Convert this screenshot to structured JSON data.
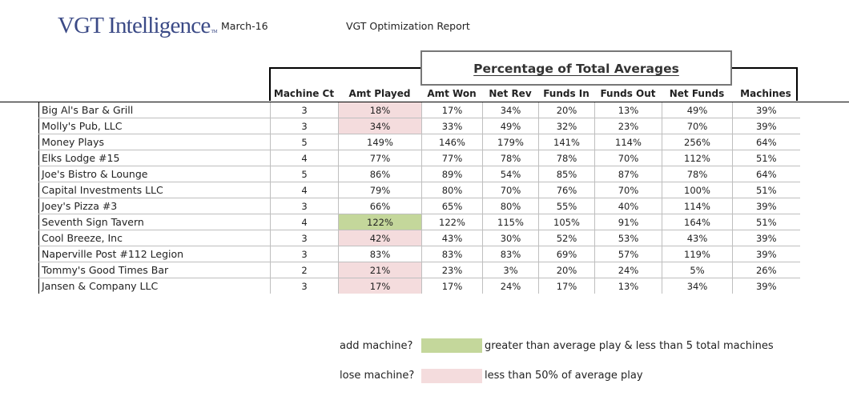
{
  "header": {
    "logo": "VGT Intelligence",
    "logo_tm": "TM",
    "date": "March-16",
    "report_title": "VGT Optimization Report",
    "section_title": "Percentage of Total Averages"
  },
  "columns": [
    "Machine Ct",
    "Amt Played",
    "Amt Won",
    "Net Rev",
    "Funds In",
    "Funds Out",
    "Net Funds",
    "Machines"
  ],
  "rows": [
    {
      "name": "Big Al's Bar & Grill",
      "machine_ct": "3",
      "amt_played": "18%",
      "amt_won": "17%",
      "net_rev": "34%",
      "funds_in": "20%",
      "funds_out": "13%",
      "net_funds": "49%",
      "machines": "39%",
      "flag": "lose"
    },
    {
      "name": "Molly's Pub, LLC",
      "machine_ct": "3",
      "amt_played": "34%",
      "amt_won": "33%",
      "net_rev": "49%",
      "funds_in": "32%",
      "funds_out": "23%",
      "net_funds": "70%",
      "machines": "39%",
      "flag": "lose"
    },
    {
      "name": "Money Plays",
      "machine_ct": "5",
      "amt_played": "149%",
      "amt_won": "146%",
      "net_rev": "179%",
      "funds_in": "141%",
      "funds_out": "114%",
      "net_funds": "256%",
      "machines": "64%",
      "flag": ""
    },
    {
      "name": "Elks Lodge #15",
      "machine_ct": "4",
      "amt_played": "77%",
      "amt_won": "77%",
      "net_rev": "78%",
      "funds_in": "78%",
      "funds_out": "70%",
      "net_funds": "112%",
      "machines": "51%",
      "flag": ""
    },
    {
      "name": "Joe's Bistro & Lounge",
      "machine_ct": "5",
      "amt_played": "86%",
      "amt_won": "89%",
      "net_rev": "54%",
      "funds_in": "85%",
      "funds_out": "87%",
      "net_funds": "78%",
      "machines": "64%",
      "flag": ""
    },
    {
      "name": "Capital Investments LLC",
      "machine_ct": "4",
      "amt_played": "79%",
      "amt_won": "80%",
      "net_rev": "70%",
      "funds_in": "76%",
      "funds_out": "70%",
      "net_funds": "100%",
      "machines": "51%",
      "flag": ""
    },
    {
      "name": "Joey's Pizza #3",
      "machine_ct": "3",
      "amt_played": "66%",
      "amt_won": "65%",
      "net_rev": "80%",
      "funds_in": "55%",
      "funds_out": "40%",
      "net_funds": "114%",
      "machines": "39%",
      "flag": ""
    },
    {
      "name": "Seventh Sign Tavern",
      "machine_ct": "4",
      "amt_played": "122%",
      "amt_won": "122%",
      "net_rev": "115%",
      "funds_in": "105%",
      "funds_out": "91%",
      "net_funds": "164%",
      "machines": "51%",
      "flag": "add"
    },
    {
      "name": "Cool Breeze, Inc",
      "machine_ct": "3",
      "amt_played": "42%",
      "amt_won": "43%",
      "net_rev": "30%",
      "funds_in": "52%",
      "funds_out": "53%",
      "net_funds": "43%",
      "machines": "39%",
      "flag": "lose"
    },
    {
      "name": "Naperville Post #112 Legion",
      "machine_ct": "3",
      "amt_played": "83%",
      "amt_won": "83%",
      "net_rev": "83%",
      "funds_in": "69%",
      "funds_out": "57%",
      "net_funds": "119%",
      "machines": "39%",
      "flag": ""
    },
    {
      "name": "Tommy's Good Times Bar",
      "machine_ct": "2",
      "amt_played": "21%",
      "amt_won": "23%",
      "net_rev": "3%",
      "funds_in": "20%",
      "funds_out": "24%",
      "net_funds": "5%",
      "machines": "26%",
      "flag": "lose"
    },
    {
      "name": "Jansen & Company LLC",
      "machine_ct": "3",
      "amt_played": "17%",
      "amt_won": "17%",
      "net_rev": "24%",
      "funds_in": "17%",
      "funds_out": "13%",
      "net_funds": "34%",
      "machines": "39%",
      "flag": "lose"
    }
  ],
  "legend": {
    "add_label": "add machine?",
    "add_text": "greater than average play & less than 5 total machines",
    "lose_label": "lose machine?",
    "lose_text": "less than 50% of average play"
  },
  "colors": {
    "add_highlight": "#c4d79b",
    "lose_highlight": "#f4dcdd",
    "logo": "#3b4a86"
  }
}
